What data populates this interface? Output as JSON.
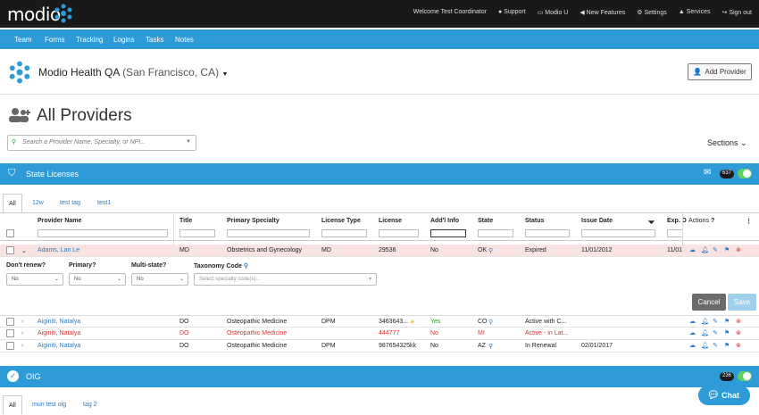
{
  "brand": {
    "logo_text": "modio",
    "welcome": "Welcome Test Coordinator"
  },
  "toplinks": [
    "Support",
    "Modio U",
    "New Features",
    "Settings",
    "Services",
    "Sign out"
  ],
  "nav": [
    "Team",
    "Forms",
    "Tracking",
    "Logins",
    "Tasks",
    "Notes"
  ],
  "org": {
    "name": "Modio Health QA",
    "location": "(San Francisco, CA)",
    "add_provider": "Add Provider"
  },
  "page_title": "All Providers",
  "search_placeholder": "Search a Provider Name, Specialty, or NPI...",
  "sections_label": "Sections",
  "state_licenses": {
    "title": "State Licenses",
    "count": "637",
    "tabs": [
      "All",
      "12w",
      "test tag",
      "test1"
    ]
  },
  "columns": [
    "Provider Name",
    "Title",
    "Primary Specialty",
    "License Type",
    "License",
    "Add'l Info",
    "State",
    "Status",
    "Issue Date",
    "Exp. D",
    "Actions"
  ],
  "rows": [
    {
      "name": "Adams, Lan Le",
      "title": "MD",
      "specialty": "Obstetrics and Gynecology",
      "license_type": "MD",
      "license": "29536",
      "addl": "No",
      "state": "OK",
      "status": "Expired",
      "issue": "11/01/2012",
      "exp": "11/01"
    },
    {
      "name": "Aiginiti, Natalya",
      "title": "DO",
      "specialty": "Osteopathic Medicine",
      "license_type": "DPM",
      "license": "3463643...",
      "addl": "Yes",
      "state": "CO",
      "status": "Active with C...",
      "issue": "",
      "exp": ""
    },
    {
      "name": "Aiginiti, Natalya",
      "title": "DO",
      "specialty": "Osteopathic Medicine",
      "license_type": "",
      "license": "444777",
      "addl": "No",
      "state": "MI",
      "status": "Active - in Lat...",
      "issue": "",
      "exp": ""
    },
    {
      "name": "Aiginiti, Natalya",
      "title": "DO",
      "specialty": "Osteopathic Medicine",
      "license_type": "DPM",
      "license": "987654325kk",
      "addl": "No",
      "state": "AZ",
      "status": "In Renewal",
      "issue": "02/01/2017",
      "exp": ""
    }
  ],
  "expanded": {
    "labels": [
      "Don't renew?",
      "Primary?",
      "Multi-state?",
      "Taxonomy Code"
    ],
    "values": [
      "No",
      "No",
      "No"
    ],
    "taxonomy_placeholder": "Select specialty code(s)...",
    "cancel": "Cancel",
    "save": "Save"
  },
  "oig": {
    "title": "OIG",
    "count": "236",
    "tabs": [
      "All",
      "mun test oig",
      "tag 2"
    ]
  },
  "chat": "Chat",
  "colors": {
    "accent": "#2d9bd8",
    "topbar": "#191919",
    "expired_row": "#f9e2e2",
    "link": "#2d7bbf",
    "danger": "#d33333"
  }
}
